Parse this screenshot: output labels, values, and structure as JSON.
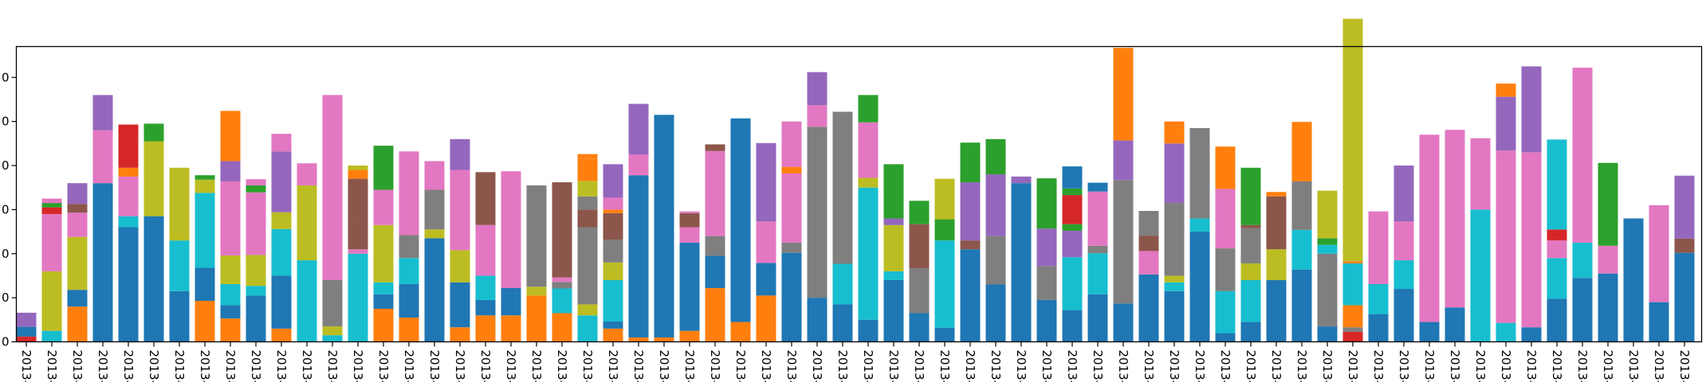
{
  "chart_data": {
    "type": "bar",
    "stacked": true,
    "title": "",
    "xlabel": "",
    "ylabel": "",
    "ylim": [
      0,
      67
    ],
    "yticks": [
      0,
      10,
      20,
      30,
      40,
      50,
      60
    ],
    "ytick_labels": [
      "0",
      "0",
      "0",
      "0",
      "0",
      "0",
      "0"
    ],
    "grid": false,
    "legend": "none",
    "x_label_rotation": -90,
    "categories": [
      "2013-",
      "2013-",
      "2013-",
      "2013-",
      "2013-",
      "2013-",
      "2013-",
      "2013-",
      "2013-",
      "2013-",
      "2013-",
      "2013-",
      "2013-",
      "2013-",
      "2013-",
      "2013-",
      "2013-",
      "2013-",
      "2013-",
      "2013-",
      "2013-",
      "2013-",
      "2013-",
      "2013-",
      "2013-",
      "2013-",
      "2013-",
      "2013-",
      "2013-",
      "2013-",
      "2013-",
      "2013-",
      "2013-",
      "2013-",
      "2013-",
      "2013-",
      "2013-",
      "2013-",
      "2013-",
      "2013-",
      "2013-",
      "2013-",
      "2013-",
      "2013-",
      "2013-",
      "2013-",
      "2013-",
      "2013-",
      "2013-",
      "2013-",
      "2013-",
      "2013-",
      "2013-",
      "2013-",
      "2013-",
      "2013-",
      "2013-",
      "2013-",
      "2013-",
      "2013-",
      "2013-",
      "2013-",
      "2013-",
      "2013-",
      "2013-",
      "2013-"
    ],
    "colors": {
      "blue": "#1f77b4",
      "orange": "#ff7f0e",
      "green": "#2ca02c",
      "red": "#d62728",
      "purple": "#9467bd",
      "brown": "#8c564b",
      "pink": "#e377c2",
      "gray": "#7f7f7f",
      "olive": "#bcbd22",
      "cyan": "#17becf"
    },
    "stacks": [
      [
        [
          "red",
          1.2
        ],
        [
          "blue",
          2.2
        ],
        [
          "purple",
          3.2
        ]
      ],
      [
        [
          "cyan",
          2.5
        ],
        [
          "olive",
          13.5
        ],
        [
          "pink",
          13
        ],
        [
          "red",
          1.5
        ],
        [
          "green",
          1
        ],
        [
          "pink",
          1
        ]
      ],
      [
        [
          "orange",
          8
        ],
        [
          "blue",
          3.8
        ],
        [
          "olive",
          12
        ],
        [
          "pink",
          5.5
        ],
        [
          "brown",
          2
        ],
        [
          "purple",
          4.7
        ]
      ],
      [
        [
          "blue",
          36
        ],
        [
          "pink",
          12
        ],
        [
          "purple",
          8
        ]
      ],
      [
        [
          "blue",
          26
        ],
        [
          "cyan",
          2.5
        ],
        [
          "pink",
          9
        ],
        [
          "orange",
          2
        ],
        [
          "red",
          9.8
        ]
      ],
      [
        [
          "blue",
          28.5
        ],
        [
          "olive",
          17
        ],
        [
          "green",
          4
        ]
      ],
      [
        [
          "blue",
          11.5
        ],
        [
          "cyan",
          11.5
        ],
        [
          "olive",
          16.5
        ]
      ],
      [
        [
          "orange",
          9.3
        ],
        [
          "blue",
          7.5
        ],
        [
          "cyan",
          17
        ],
        [
          "olive",
          3
        ],
        [
          "green",
          1
        ]
      ],
      [
        [
          "orange",
          5.3
        ],
        [
          "blue",
          3
        ],
        [
          "cyan",
          4.8
        ],
        [
          "olive",
          6.5
        ],
        [
          "pink",
          16.8
        ],
        [
          "purple",
          4.6
        ],
        [
          "orange",
          11.4
        ]
      ],
      [
        [
          "blue",
          10.5
        ],
        [
          "cyan",
          2.2
        ],
        [
          "olive",
          7
        ],
        [
          "pink",
          14.2
        ],
        [
          "green",
          1.6
        ],
        [
          "pink",
          1.4
        ]
      ],
      [
        [
          "orange",
          3
        ],
        [
          "blue",
          12
        ],
        [
          "cyan",
          10.6
        ],
        [
          "olive",
          3.8
        ],
        [
          "purple",
          13.8
        ],
        [
          "pink",
          4
        ]
      ],
      [
        [
          "cyan",
          18.5
        ],
        [
          "olive",
          17
        ],
        [
          "pink",
          5
        ]
      ],
      [
        [
          "cyan",
          1.5
        ],
        [
          "olive",
          2
        ],
        [
          "gray",
          10.5
        ],
        [
          "pink",
          42
        ]
      ],
      [
        [
          "cyan",
          20
        ],
        [
          "pink",
          1
        ],
        [
          "brown",
          7
        ],
        [
          "brown",
          9
        ],
        [
          "orange",
          2
        ],
        [
          "olive",
          1
        ]
      ],
      [
        [
          "orange",
          7.5
        ],
        [
          "blue",
          3.3
        ],
        [
          "cyan",
          2.7
        ],
        [
          "olive",
          13
        ],
        [
          "pink",
          8
        ],
        [
          "green",
          10
        ]
      ],
      [
        [
          "orange",
          5.5
        ],
        [
          "blue",
          7.6
        ],
        [
          "cyan",
          5.9
        ],
        [
          "gray",
          5.2
        ],
        [
          "pink",
          19
        ]
      ],
      [
        [
          "blue",
          23.5
        ],
        [
          "olive",
          2
        ],
        [
          "gray",
          9
        ],
        [
          "pink",
          6.5
        ]
      ],
      [
        [
          "orange",
          3.3
        ],
        [
          "blue",
          10.2
        ],
        [
          "olive",
          7.3
        ],
        [
          "pink",
          18.2
        ],
        [
          "purple",
          7
        ]
      ],
      [
        [
          "orange",
          6
        ],
        [
          "blue",
          3.5
        ],
        [
          "cyan",
          5.5
        ],
        [
          "pink",
          11.5
        ],
        [
          "brown",
          12
        ]
      ],
      [
        [
          "orange",
          6
        ],
        [
          "blue",
          6.2
        ],
        [
          "pink",
          26.5
        ]
      ],
      [
        [
          "orange",
          10.5
        ],
        [
          "olive",
          2
        ],
        [
          "gray",
          23
        ]
      ],
      [
        [
          "orange",
          6.5
        ],
        [
          "cyan",
          5.6
        ],
        [
          "gray",
          1.5
        ],
        [
          "pink",
          1
        ],
        [
          "brown",
          21.6
        ]
      ],
      [
        [
          "cyan",
          6
        ],
        [
          "olive",
          2.5
        ],
        [
          "gray",
          17.5
        ],
        [
          "brown",
          4
        ],
        [
          "gray",
          3
        ],
        [
          "olive",
          3.5
        ],
        [
          "orange",
          5
        ],
        [
          "orange",
          1.1
        ]
      ],
      [
        [
          "orange",
          3
        ],
        [
          "blue",
          1.6
        ],
        [
          "cyan",
          9.4
        ],
        [
          "olive",
          4
        ],
        [
          "gray",
          5.2
        ],
        [
          "brown",
          6
        ],
        [
          "orange",
          0.8
        ],
        [
          "pink",
          2.7
        ],
        [
          "purple",
          7.6
        ]
      ],
      [
        [
          "orange",
          1
        ],
        [
          "blue",
          36.8
        ],
        [
          "pink",
          4.7
        ],
        [
          "purple",
          11.5
        ]
      ],
      [
        [
          "orange",
          1
        ],
        [
          "blue",
          50.5
        ]
      ],
      [
        [
          "orange",
          2.5
        ],
        [
          "blue",
          20
        ],
        [
          "pink",
          3.5
        ],
        [
          "brown",
          3.2
        ],
        [
          "pink",
          0.4
        ]
      ],
      [
        [
          "orange",
          12.2
        ],
        [
          "blue",
          7.3
        ],
        [
          "gray",
          4.5
        ],
        [
          "pink",
          19.3
        ],
        [
          "brown",
          1.5
        ]
      ],
      [
        [
          "orange",
          4.5
        ],
        [
          "blue",
          46.2
        ]
      ],
      [
        [
          "orange",
          10.5
        ],
        [
          "blue",
          7.4
        ],
        [
          "pink",
          9.4
        ],
        [
          "purple",
          17.8
        ]
      ],
      [
        [
          "blue",
          20.2
        ],
        [
          "gray",
          2.3
        ],
        [
          "pink",
          15.7
        ],
        [
          "orange",
          1.5
        ],
        [
          "pink",
          10.3
        ]
      ],
      [
        [
          "blue",
          10
        ],
        [
          "gray",
          38.8
        ],
        [
          "pink",
          4.9
        ],
        [
          "purple",
          7.5
        ]
      ],
      [
        [
          "blue",
          8.5
        ],
        [
          "cyan",
          9.2
        ],
        [
          "gray",
          34.5
        ]
      ],
      [
        [
          "blue",
          5
        ],
        [
          "cyan",
          30
        ],
        [
          "olive",
          2.2
        ],
        [
          "pink",
          12.6
        ],
        [
          "green",
          6.2
        ]
      ],
      [
        [
          "blue",
          14
        ],
        [
          "cyan",
          2
        ],
        [
          "olive",
          10.5
        ],
        [
          "purple",
          1.5
        ],
        [
          "green",
          12.3
        ]
      ],
      [
        [
          "blue",
          6.5
        ],
        [
          "gray",
          10.2
        ],
        [
          "brown",
          10
        ],
        [
          "green",
          5.3
        ]
      ],
      [
        [
          "blue",
          3.2
        ],
        [
          "cyan",
          19.8
        ],
        [
          "green",
          4.8
        ],
        [
          "olive",
          9.2
        ]
      ],
      [
        [
          "blue",
          21
        ],
        [
          "brown",
          2
        ],
        [
          "purple",
          13.2
        ],
        [
          "green",
          9
        ]
      ],
      [
        [
          "blue",
          13
        ],
        [
          "gray",
          11
        ],
        [
          "purple",
          14
        ],
        [
          "green",
          8
        ]
      ],
      [
        [
          "blue",
          36
        ],
        [
          "purple",
          1.5
        ]
      ],
      [
        [
          "blue",
          9.5
        ],
        [
          "gray",
          7.7
        ],
        [
          "purple",
          8.5
        ],
        [
          "green",
          11.4
        ]
      ],
      [
        [
          "blue",
          7.2
        ],
        [
          "cyan",
          12
        ],
        [
          "purple",
          6
        ],
        [
          "green",
          1.5
        ],
        [
          "red",
          6.6
        ],
        [
          "green",
          1.5
        ],
        [
          "blue",
          5
        ]
      ],
      [
        [
          "blue",
          10.8
        ],
        [
          "cyan",
          9.3
        ],
        [
          "gray",
          1.7
        ],
        [
          "pink",
          12.3
        ],
        [
          "blue",
          2
        ]
      ],
      [
        [
          "blue",
          8.7
        ],
        [
          "gray",
          28
        ],
        [
          "purple",
          9
        ],
        [
          "orange",
          21
        ]
      ],
      [
        [
          "blue",
          15.3
        ],
        [
          "pink",
          5.3
        ],
        [
          "brown",
          3.5
        ],
        [
          "gray",
          5.6
        ]
      ],
      [
        [
          "blue",
          11.5
        ],
        [
          "cyan",
          2
        ],
        [
          "olive",
          1.5
        ],
        [
          "gray",
          16.5
        ],
        [
          "purple",
          13.5
        ],
        [
          "orange",
          5
        ]
      ],
      [
        [
          "blue",
          25
        ],
        [
          "cyan",
          3
        ],
        [
          "gray",
          20.5
        ]
      ],
      [
        [
          "blue",
          2
        ],
        [
          "cyan",
          9.5
        ],
        [
          "gray",
          9.7
        ],
        [
          "pink",
          13.5
        ],
        [
          "orange",
          9.6
        ]
      ],
      [
        [
          "blue",
          4.5
        ],
        [
          "cyan",
          9.5
        ],
        [
          "olive",
          3.8
        ],
        [
          "gray",
          8
        ],
        [
          "brown",
          0.7
        ],
        [
          "green",
          13
        ]
      ],
      [
        [
          "blue",
          14
        ],
        [
          "olive",
          7
        ],
        [
          "brown",
          12
        ],
        [
          "orange",
          1
        ]
      ],
      [
        [
          "blue",
          16.4
        ],
        [
          "cyan",
          9
        ],
        [
          "gray",
          11
        ],
        [
          "orange",
          13.5
        ]
      ],
      [
        [
          "blue",
          3.5
        ],
        [
          "gray",
          16.5
        ],
        [
          "cyan",
          2
        ],
        [
          "green",
          1.5
        ],
        [
          "olive",
          10.8
        ]
      ],
      [
        [
          "red",
          2.3
        ],
        [
          "gray",
          1
        ],
        [
          "orange",
          5
        ],
        [
          "cyan",
          9.5
        ],
        [
          "orange",
          0.5
        ],
        [
          "olive",
          55
        ]
      ],
      [
        [
          "blue",
          6.3
        ],
        [
          "cyan",
          6.8
        ],
        [
          "pink",
          16.5
        ]
      ],
      [
        [
          "blue",
          12
        ],
        [
          "cyan",
          6.5
        ],
        [
          "pink",
          8.8
        ],
        [
          "purple",
          12.7
        ]
      ],
      [
        [
          "blue",
          4.5
        ],
        [
          "pink",
          42.5
        ]
      ],
      [
        [
          "blue",
          7.8
        ],
        [
          "pink",
          40.3
        ]
      ],
      [
        [
          "cyan",
          30
        ],
        [
          "pink",
          16.2
        ]
      ],
      [
        [
          "cyan",
          4.3
        ],
        [
          "pink",
          39.1
        ],
        [
          "purple",
          12.2
        ],
        [
          "orange",
          3
        ]
      ],
      [
        [
          "blue",
          3.3
        ],
        [
          "pink",
          39.7
        ],
        [
          "purple",
          19.5
        ]
      ],
      [
        [
          "blue",
          9.8
        ],
        [
          "cyan",
          9.2
        ],
        [
          "pink",
          4
        ],
        [
          "red",
          2.5
        ],
        [
          "cyan",
          20.4
        ]
      ],
      [
        [
          "blue",
          14.5
        ],
        [
          "cyan",
          8
        ],
        [
          "pink",
          39.7
        ]
      ],
      [
        [
          "blue",
          15.5
        ],
        [
          "pink",
          6.3
        ],
        [
          "green",
          18.8
        ]
      ],
      [
        [
          "blue",
          28
        ]
      ],
      [
        [
          "blue",
          9
        ],
        [
          "pink",
          22
        ]
      ],
      [
        [
          "blue",
          20.2
        ],
        [
          "brown",
          3.2
        ],
        [
          "purple",
          14.3
        ]
      ]
    ]
  }
}
